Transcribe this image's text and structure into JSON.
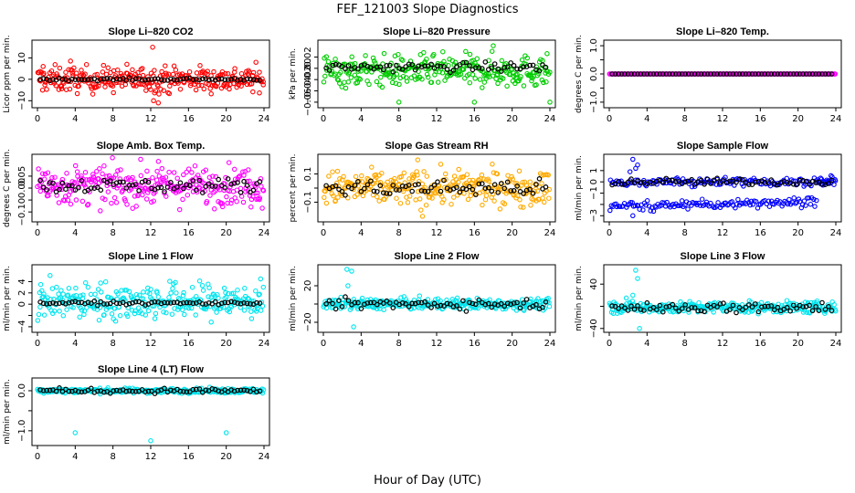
{
  "figure": {
    "title": "FEF_121003  Slope Diagnostics",
    "xlabel": "Hour of Day (UTC)"
  },
  "chart_data": [
    {
      "type": "scatter",
      "title": "Slope Li–820 CO2",
      "ylabel": "Licor ppm per min.",
      "xlim": [
        0,
        24
      ],
      "ylim": [
        -12,
        17
      ],
      "xticks": [
        0,
        4,
        8,
        12,
        16,
        20,
        24
      ],
      "xtick_labels": [
        "0",
        "4",
        "8",
        "12",
        "16",
        "20",
        "24"
      ],
      "yticks": [
        -10,
        0,
        10
      ],
      "ytick_labels": [
        "−10",
        "0",
        "10"
      ],
      "color": "#ff0000",
      "spread": {
        "x_range": [
          0,
          24
        ],
        "center": 0,
        "scatter": 3,
        "outliers": [
          [
            12.2,
            15
          ],
          [
            12.3,
            -10
          ],
          [
            12.8,
            -11
          ],
          [
            3.5,
            8.5
          ],
          [
            0.6,
            6
          ]
        ]
      },
      "black_points": {
        "center": 0,
        "scatter": 0.3
      }
    },
    {
      "type": "scatter",
      "title": "Slope Li–820 Pressure",
      "ylabel": "kPa per min.",
      "xlim": [
        0,
        24
      ],
      "ylim": [
        -0.065,
        0.045
      ],
      "xticks": [
        0,
        4,
        8,
        12,
        16,
        20,
        24
      ],
      "xtick_labels": [
        "0",
        "4",
        "8",
        "12",
        "16",
        "20",
        "24"
      ],
      "yticks": [
        -0.06,
        -0.04,
        -0.02,
        0.0,
        0.02
      ],
      "ytick_labels": [
        "−0.06",
        "−0.04",
        "−0.02",
        "0.00",
        "0.02"
      ],
      "color": "#00cc00",
      "spread": {
        "x_range": [
          0,
          24
        ],
        "center": -0.005,
        "scatter": 0.014,
        "outliers": [
          [
            18,
            0.04
          ],
          [
            24,
            -0.06
          ],
          [
            16,
            -0.06
          ],
          [
            8,
            -0.06
          ]
        ]
      },
      "black_points": {
        "center": 0.002,
        "scatter": 0.004
      }
    },
    {
      "type": "scatter",
      "title": "Slope Li–820 Temp.",
      "ylabel": "degrees C per min.",
      "xlim": [
        0,
        24
      ],
      "ylim": [
        -1.1,
        1.1
      ],
      "xticks": [
        0,
        4,
        8,
        12,
        16,
        20,
        24
      ],
      "xtick_labels": [
        "0",
        "4",
        "8",
        "12",
        "16",
        "20",
        "24"
      ],
      "yticks": [
        -1.0,
        -0.5,
        0.0,
        0.5,
        1.0
      ],
      "ytick_labels": [
        "−1.0",
        "",
        "0.0",
        "",
        "1.0"
      ],
      "color": "#ff00ff",
      "spread": {
        "x_range": [
          0,
          24
        ],
        "center": 0,
        "scatter": 0,
        "outliers": []
      },
      "black_points": {
        "center": 0,
        "scatter": 0
      }
    },
    {
      "type": "scatter",
      "title": "Slope Amb. Box Temp.",
      "ylabel": "degrees C per min.",
      "xlim": [
        0,
        24
      ],
      "ylim": [
        -0.13,
        0.13
      ],
      "xticks": [
        0,
        4,
        8,
        12,
        16,
        20,
        24
      ],
      "xtick_labels": [
        "0",
        "4",
        "8",
        "12",
        "16",
        "20",
        "24"
      ],
      "yticks": [
        -0.1,
        -0.05,
        0.0,
        0.05
      ],
      "ytick_labels": [
        "−0.10",
        "",
        "0.00",
        "0.05"
      ],
      "color": "#ff00ff",
      "spread": {
        "x_range": [
          0,
          24
        ],
        "center": 0.01,
        "scatter": 0.04,
        "outliers": []
      },
      "black_points": {
        "center": 0.01,
        "scatter": 0.015
      }
    },
    {
      "type": "scatter",
      "title": "Slope Gas Stream RH",
      "ylabel": "percent per min.",
      "xlim": [
        0,
        24
      ],
      "ylim": [
        -0.22,
        0.22
      ],
      "xticks": [
        0,
        4,
        8,
        12,
        16,
        20,
        24
      ],
      "xtick_labels": [
        "0",
        "4",
        "8",
        "12",
        "16",
        "20",
        "24"
      ],
      "yticks": [
        -0.1,
        0.0,
        0.1
      ],
      "ytick_labels": [
        "−0.1",
        "",
        "0.1"
      ],
      "color": "#ffaa00",
      "spread": {
        "x_range": [
          0,
          24
        ],
        "center": 0.0,
        "scatter": 0.06,
        "outliers": [
          [
            10,
            0.2
          ],
          [
            10.5,
            -0.2
          ]
        ]
      },
      "black_points": {
        "center": 0.0,
        "scatter": 0.03
      }
    },
    {
      "type": "scatter",
      "title": "Slope Sample Flow",
      "ylabel": "ml/min per min.",
      "xlim": [
        0,
        24
      ],
      "ylim": [
        -3.3,
        2.2
      ],
      "xticks": [
        0,
        4,
        8,
        12,
        16,
        20,
        24
      ],
      "xtick_labels": [
        "0",
        "4",
        "8",
        "12",
        "16",
        "20",
        "24"
      ],
      "yticks": [
        -3,
        -2,
        -1,
        0,
        1
      ],
      "ytick_labels": [
        "−3",
        "",
        "−1",
        "0",
        "1"
      ],
      "color": "#0000ff",
      "spread": {
        "x_range": [
          0,
          24
        ],
        "center": 0,
        "scatter": 0.2,
        "second_band": -2.2,
        "outliers": [
          [
            2.5,
            2.0
          ],
          [
            2.8,
            1.2
          ],
          [
            2.2,
            0.9
          ],
          [
            3.0,
            1.5
          ],
          [
            2.5,
            -3.0
          ]
        ]
      },
      "black_points": {
        "center": 0,
        "scatter": 0.15
      }
    },
    {
      "type": "scatter",
      "title": "Slope Line 1 Flow",
      "ylabel": "ml/min per min.",
      "xlim": [
        0,
        24
      ],
      "ylim": [
        -4.5,
        6.5
      ],
      "xticks": [
        0,
        4,
        8,
        12,
        16,
        20,
        24
      ],
      "xtick_labels": [
        "0",
        "4",
        "8",
        "12",
        "16",
        "20",
        "24"
      ],
      "yticks": [
        -4,
        -2,
        0,
        2,
        4
      ],
      "ytick_labels": [
        "−4",
        "",
        "0",
        "2",
        "4"
      ],
      "color": "#00e5ee",
      "spread": {
        "x_range": [
          0,
          24
        ],
        "center": 0.5,
        "scatter": 1.6,
        "outliers": []
      },
      "black_points": {
        "center": 0.2,
        "scatter": 0.15
      }
    },
    {
      "type": "scatter",
      "title": "Slope Line 2 Flow",
      "ylabel": "ml/min per min.",
      "xlim": [
        0,
        24
      ],
      "ylim": [
        -28,
        40
      ],
      "xticks": [
        0,
        4,
        8,
        12,
        16,
        20,
        24
      ],
      "xtick_labels": [
        "0",
        "4",
        "8",
        "12",
        "16",
        "20",
        "24"
      ],
      "yticks": [
        -20,
        0,
        20
      ],
      "ytick_labels": [
        "−20",
        "",
        "20"
      ],
      "color": "#00e5ee",
      "spread": {
        "x_range": [
          0,
          24
        ],
        "center": 0,
        "scatter": 3,
        "outliers": [
          [
            2.5,
            38
          ],
          [
            3.0,
            36
          ],
          [
            2.6,
            20
          ],
          [
            3.2,
            -25
          ]
        ]
      },
      "black_points": {
        "center": 0,
        "scatter": 3
      }
    },
    {
      "type": "scatter",
      "title": "Slope Line 3 Flow",
      "ylabel": "ml/min per min.",
      "xlim": [
        0,
        24
      ],
      "ylim": [
        -42,
        70
      ],
      "xticks": [
        0,
        4,
        8,
        12,
        16,
        20,
        24
      ],
      "xtick_labels": [
        "0",
        "4",
        "8",
        "12",
        "16",
        "20",
        "24"
      ],
      "yticks": [
        -40,
        0,
        40
      ],
      "ytick_labels": [
        "−40",
        "",
        "40"
      ],
      "color": "#00e5ee",
      "spread": {
        "x_range": [
          0,
          24
        ],
        "center": -2,
        "scatter": 5,
        "outliers": [
          [
            2.8,
            65
          ],
          [
            3.0,
            50
          ],
          [
            2.5,
            20
          ],
          [
            1.8,
            15
          ],
          [
            3.2,
            -40
          ]
        ]
      },
      "black_points": {
        "center": -2,
        "scatter": 5
      }
    },
    {
      "type": "scatter",
      "title": "Slope Line 4 (LT) Flow",
      "ylabel": "ml/min per min.",
      "xlim": [
        0,
        24
      ],
      "ylim": [
        -1.3,
        0.25
      ],
      "xticks": [
        0,
        4,
        8,
        12,
        16,
        20,
        24
      ],
      "xtick_labels": [
        "0",
        "4",
        "8",
        "12",
        "16",
        "20",
        "24"
      ],
      "yticks": [
        -1.0,
        -0.5,
        0.0
      ],
      "ytick_labels": [
        "−1.0",
        "",
        "0.0"
      ],
      "color": "#00e5ee",
      "spread": {
        "x_range": [
          0,
          24
        ],
        "center": 0,
        "scatter": 0.03,
        "outliers": [
          [
            4,
            -1.05
          ],
          [
            12,
            -1.25
          ],
          [
            20,
            -1.05
          ]
        ]
      },
      "black_points": {
        "center": 0,
        "scatter": 0.03
      }
    }
  ]
}
